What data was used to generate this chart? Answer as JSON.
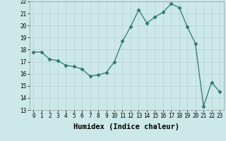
{
  "x": [
    0,
    1,
    2,
    3,
    4,
    5,
    6,
    7,
    8,
    9,
    10,
    11,
    12,
    13,
    14,
    15,
    16,
    17,
    18,
    19,
    20,
    21,
    22,
    23
  ],
  "y": [
    17.8,
    17.8,
    17.2,
    17.1,
    16.7,
    16.6,
    16.4,
    15.8,
    15.9,
    16.1,
    17.0,
    18.7,
    19.9,
    21.3,
    20.2,
    20.7,
    21.1,
    21.8,
    21.5,
    19.9,
    18.5,
    13.3,
    15.3,
    14.5
  ],
  "line_color": "#2d7a6a",
  "marker": "D",
  "marker_size": 2.5,
  "bg_color": "#cce8e8",
  "grid_color": "#b8d4d4",
  "xlabel": "Humidex (Indice chaleur)",
  "ylim": [
    13,
    22
  ],
  "xlim": [
    -0.5,
    23.5
  ],
  "yticks": [
    13,
    14,
    15,
    16,
    17,
    18,
    19,
    20,
    21,
    22
  ],
  "xticks": [
    0,
    1,
    2,
    3,
    4,
    5,
    6,
    7,
    8,
    9,
    10,
    11,
    12,
    13,
    14,
    15,
    16,
    17,
    18,
    19,
    20,
    21,
    22,
    23
  ],
  "tick_fontsize": 5.5,
  "label_fontsize": 7.5
}
